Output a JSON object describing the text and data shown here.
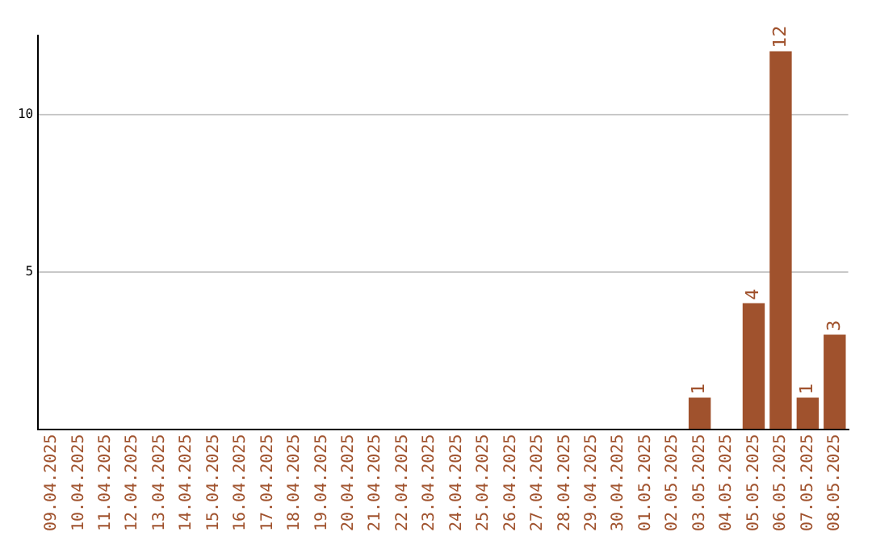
{
  "chart_data": {
    "type": "bar",
    "categories": [
      "09.04.2025",
      "10.04.2025",
      "11.04.2025",
      "12.04.2025",
      "13.04.2025",
      "14.04.2025",
      "15.04.2025",
      "16.04.2025",
      "17.04.2025",
      "18.04.2025",
      "19.04.2025",
      "20.04.2025",
      "21.04.2025",
      "22.04.2025",
      "23.04.2025",
      "24.04.2025",
      "25.04.2025",
      "26.04.2025",
      "27.04.2025",
      "28.04.2025",
      "29.04.2025",
      "30.04.2025",
      "01.05.2025",
      "02.05.2025",
      "03.05.2025",
      "04.05.2025",
      "05.05.2025",
      "06.05.2025",
      "07.05.2025",
      "08.05.2025"
    ],
    "values": [
      0,
      0,
      0,
      0,
      0,
      0,
      0,
      0,
      0,
      0,
      0,
      0,
      0,
      0,
      0,
      0,
      0,
      0,
      0,
      0,
      0,
      0,
      0,
      0,
      1,
      0,
      4,
      12,
      1,
      3
    ],
    "value_labels": [
      null,
      null,
      null,
      null,
      null,
      null,
      null,
      null,
      null,
      null,
      null,
      null,
      null,
      null,
      null,
      null,
      null,
      null,
      null,
      null,
      null,
      null,
      null,
      null,
      "1",
      null,
      "4",
      "12",
      "1",
      "3"
    ],
    "color": "#a0522d",
    "ylim": [
      0,
      12.5
    ],
    "yticks": [
      5,
      10
    ],
    "grid": "y"
  }
}
